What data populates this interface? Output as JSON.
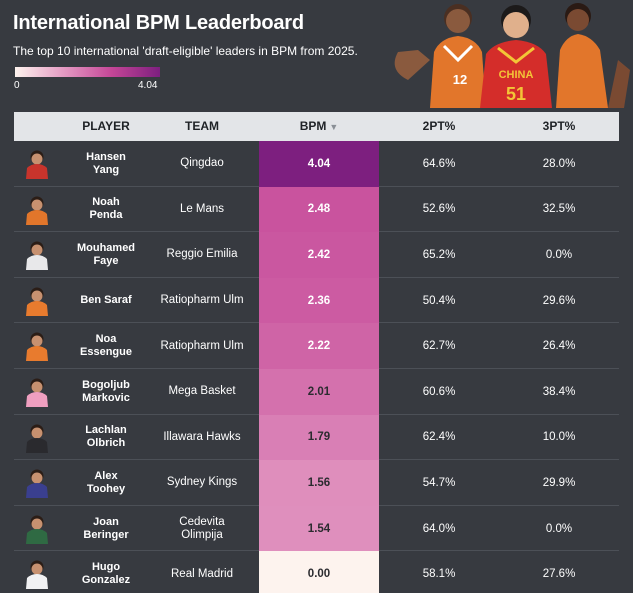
{
  "header": {
    "title": "International BPM Leaderboard",
    "subtitle": "The top 10 international 'draft-eligible' leaders in BPM from 2025."
  },
  "legend": {
    "min_label": "0",
    "max_label": "4.04",
    "min": 0,
    "max": 4.04,
    "colors": [
      "#fdf3ee",
      "#e49bc3",
      "#c44697",
      "#7d1f7f"
    ]
  },
  "jerseys": {
    "left": "12",
    "center": "51",
    "center_team": "CHINA"
  },
  "chart_data": {
    "type": "table",
    "columns": [
      "PLAYER",
      "TEAM",
      "BPM",
      "2PT%",
      "3PT%"
    ],
    "sort_column": "BPM",
    "sort_arrow": "▼",
    "rows": [
      {
        "player": [
          "Hansen",
          "Yang"
        ],
        "team": [
          "Qingdao"
        ],
        "bpm": "4.04",
        "bpm_value": 4.04,
        "two_pt": "64.6%",
        "three_pt": "28.0%",
        "jersey": "#c8342c"
      },
      {
        "player": [
          "Noah",
          "Penda"
        ],
        "team": [
          "Le Mans"
        ],
        "bpm": "2.48",
        "bpm_value": 2.48,
        "two_pt": "52.6%",
        "three_pt": "32.5%",
        "jersey": "#e2762b"
      },
      {
        "player": [
          "Mouhamed",
          "Faye"
        ],
        "team": [
          "Reggio Emilia"
        ],
        "bpm": "2.42",
        "bpm_value": 2.42,
        "two_pt": "65.2%",
        "three_pt": "0.0%",
        "jersey": "#e8e8ea"
      },
      {
        "player": [
          "Ben Saraf"
        ],
        "team": [
          "Ratiopharm Ulm"
        ],
        "bpm": "2.36",
        "bpm_value": 2.36,
        "two_pt": "50.4%",
        "three_pt": "29.6%",
        "jersey": "#e87b2e"
      },
      {
        "player": [
          "Noa",
          "Essengue"
        ],
        "team": [
          "Ratiopharm Ulm"
        ],
        "bpm": "2.22",
        "bpm_value": 2.22,
        "two_pt": "62.7%",
        "three_pt": "26.4%",
        "jersey": "#e87b2e"
      },
      {
        "player": [
          "Bogoljub",
          "Markovic"
        ],
        "team": [
          "Mega Basket"
        ],
        "bpm": "2.01",
        "bpm_value": 2.01,
        "two_pt": "60.6%",
        "three_pt": "38.4%",
        "jersey": "#ef9fc0"
      },
      {
        "player": [
          "Lachlan",
          "Olbrich"
        ],
        "team": [
          "Illawara Hawks"
        ],
        "bpm": "1.79",
        "bpm_value": 1.79,
        "two_pt": "62.4%",
        "three_pt": "10.0%",
        "jersey": "#2a2a2e"
      },
      {
        "player": [
          "Alex",
          "Toohey"
        ],
        "team": [
          "Sydney Kings"
        ],
        "bpm": "1.56",
        "bpm_value": 1.56,
        "two_pt": "54.7%",
        "three_pt": "29.9%",
        "jersey": "#3a3f8f"
      },
      {
        "player": [
          "Joan",
          "Beringer"
        ],
        "team": [
          "Cedevita",
          "Olimpija"
        ],
        "bpm": "1.54",
        "bpm_value": 1.54,
        "two_pt": "64.0%",
        "three_pt": "0.0%",
        "jersey": "#2f6a43"
      },
      {
        "player": [
          "Hugo",
          "Gonzalez"
        ],
        "team": [
          "Real Madrid"
        ],
        "bpm": "0.00",
        "bpm_value": 0.0,
        "two_pt": "58.1%",
        "three_pt": "27.6%",
        "jersey": "#f1f1f3"
      }
    ]
  }
}
